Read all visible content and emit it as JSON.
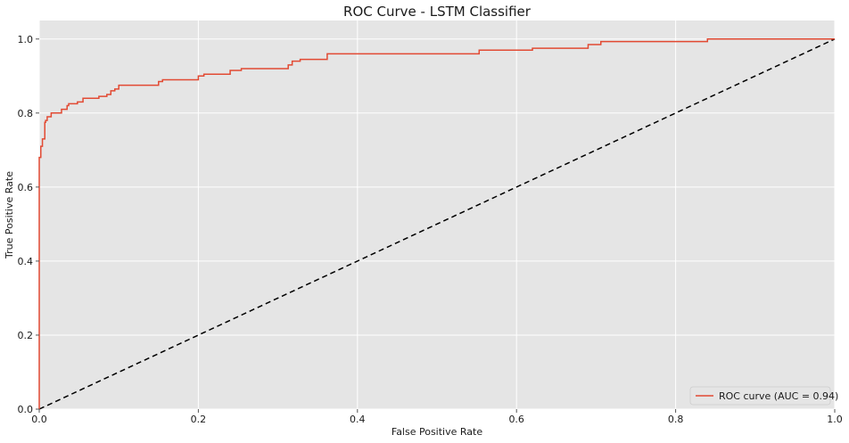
{
  "chart_data": {
    "type": "line",
    "title": "ROC Curve - LSTM Classifier",
    "xlabel": "False Positive Rate",
    "ylabel": "True Positive Rate",
    "xlim": [
      0,
      1
    ],
    "ylim": [
      0,
      1.05
    ],
    "x_ticks": [
      0,
      0.2,
      0.4,
      0.6,
      0.8,
      1
    ],
    "x_tick_labels": [
      "0.0",
      "0.2",
      "0.4",
      "0.6",
      "0.8",
      "1.0"
    ],
    "y_ticks": [
      0,
      0.2,
      0.4,
      0.6,
      0.8,
      1
    ],
    "y_tick_labels": [
      "0.0",
      "0.2",
      "0.4",
      "0.6",
      "0.8",
      "1.0"
    ],
    "grid": true,
    "legend_position": "lower-right",
    "series": [
      {
        "name": "ROC curve (AUC = 0.94)",
        "color": "#e24a33",
        "style": "solid",
        "x": [
          0,
          0,
          0.002,
          0.002,
          0.004,
          0.004,
          0.007,
          0.007,
          0.008,
          0.008,
          0.01,
          0.01,
          0.015,
          0.015,
          0.028,
          0.028,
          0.035,
          0.035,
          0.037,
          0.037,
          0.048,
          0.048,
          0.055,
          0.055,
          0.075,
          0.075,
          0.085,
          0.085,
          0.09,
          0.09,
          0.095,
          0.095,
          0.1,
          0.1,
          0.15,
          0.15,
          0.155,
          0.155,
          0.2,
          0.2,
          0.207,
          0.207,
          0.24,
          0.24,
          0.254,
          0.254,
          0.313,
          0.313,
          0.318,
          0.318,
          0.328,
          0.328,
          0.362,
          0.362,
          0.553,
          0.553,
          0.62,
          0.62,
          0.69,
          0.69,
          0.706,
          0.706,
          0.84,
          0.84,
          1
        ],
        "y": [
          0,
          0.68,
          0.68,
          0.71,
          0.71,
          0.73,
          0.73,
          0.775,
          0.775,
          0.78,
          0.78,
          0.79,
          0.79,
          0.8,
          0.8,
          0.81,
          0.81,
          0.82,
          0.82,
          0.825,
          0.825,
          0.83,
          0.83,
          0.84,
          0.84,
          0.845,
          0.845,
          0.85,
          0.85,
          0.86,
          0.86,
          0.865,
          0.865,
          0.875,
          0.875,
          0.885,
          0.885,
          0.89,
          0.89,
          0.9,
          0.9,
          0.905,
          0.905,
          0.915,
          0.915,
          0.92,
          0.92,
          0.93,
          0.93,
          0.94,
          0.94,
          0.945,
          0.945,
          0.96,
          0.96,
          0.97,
          0.97,
          0.975,
          0.975,
          0.985,
          0.985,
          0.993,
          0.993,
          1.0,
          1.0
        ]
      },
      {
        "name": "",
        "color": "#000000",
        "style": "dashed",
        "x": [
          0,
          1
        ],
        "y": [
          0,
          1
        ]
      }
    ]
  }
}
